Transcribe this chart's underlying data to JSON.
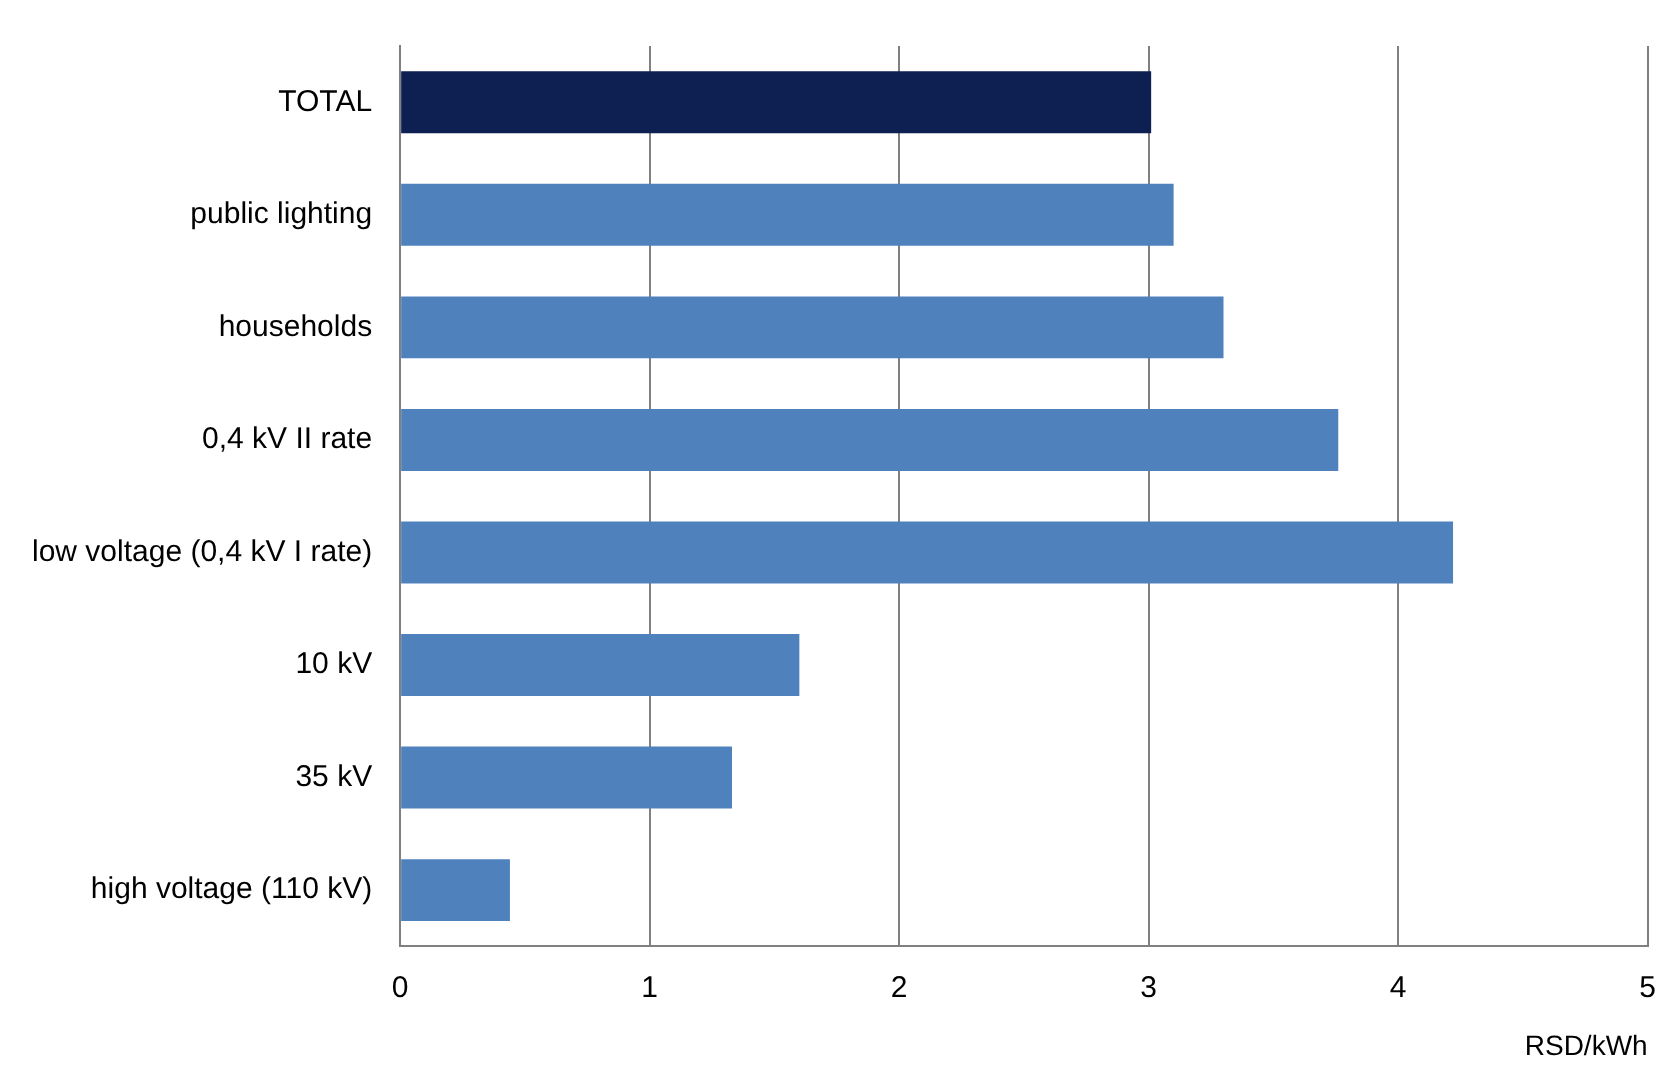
{
  "chart_data": {
    "type": "bar",
    "orientation": "horizontal",
    "xlabel": "RSD/kWh",
    "categories": [
      "TOTAL",
      "public lighting",
      "households",
      "0,4 kV II rate",
      "low voltage (0,4 kV I rate)",
      "10 kV",
      "35 kV",
      "high voltage (110 kV)"
    ],
    "values": [
      3.01,
      3.1,
      3.3,
      3.76,
      4.22,
      1.6,
      1.33,
      0.44
    ],
    "colors": [
      "#0e1f52",
      "#4f81bd",
      "#4f81bd",
      "#4f81bd",
      "#4f81bd",
      "#4f81bd",
      "#4f81bd",
      "#4f81bd"
    ],
    "xlim": [
      0,
      5
    ],
    "xticks": [
      0,
      1,
      2,
      3,
      4,
      5
    ],
    "grid": "x",
    "legend": false
  }
}
